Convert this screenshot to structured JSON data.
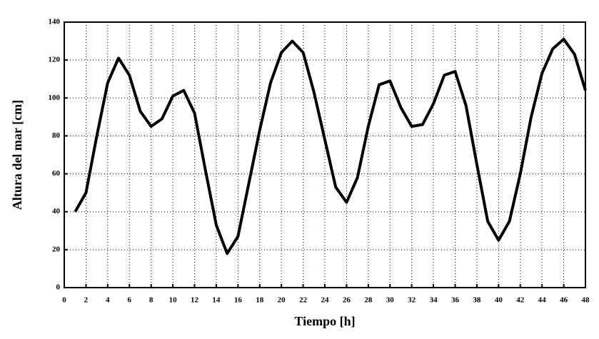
{
  "chart_data": {
    "type": "line",
    "x_label": "Tiempo  [h]",
    "y_label": "Altura del mar [cm]",
    "x": [
      1,
      2,
      3,
      4,
      5,
      6,
      7,
      8,
      9,
      10,
      11,
      12,
      13,
      14,
      15,
      16,
      17,
      18,
      19,
      20,
      21,
      22,
      23,
      24,
      25,
      26,
      27,
      28,
      29,
      30,
      31,
      32,
      33,
      34,
      35,
      36,
      37,
      38,
      39,
      40,
      41,
      42,
      43,
      44,
      45,
      46,
      47,
      48
    ],
    "series": [
      {
        "color": "#000000",
        "values": [
          40,
          50,
          80,
          108,
          121,
          112,
          93,
          85,
          89,
          101,
          104,
          92,
          62,
          33,
          18,
          27,
          55,
          83,
          108,
          124,
          130,
          124,
          103,
          78,
          53,
          45,
          58,
          85,
          107,
          109,
          95,
          85,
          86,
          97,
          112,
          114,
          96,
          65,
          35,
          25,
          35,
          60,
          90,
          113,
          126,
          131,
          123,
          104
        ]
      }
    ],
    "xlim": [
      0,
      48
    ],
    "xticks": [
      0,
      2,
      4,
      6,
      8,
      10,
      12,
      14,
      16,
      18,
      20,
      22,
      24,
      26,
      28,
      30,
      32,
      34,
      36,
      38,
      40,
      42,
      44,
      46,
      48
    ],
    "ylim": [
      0,
      140
    ],
    "yticks": [
      0,
      20,
      40,
      60,
      80,
      100,
      120,
      140
    ],
    "grid": true
  }
}
